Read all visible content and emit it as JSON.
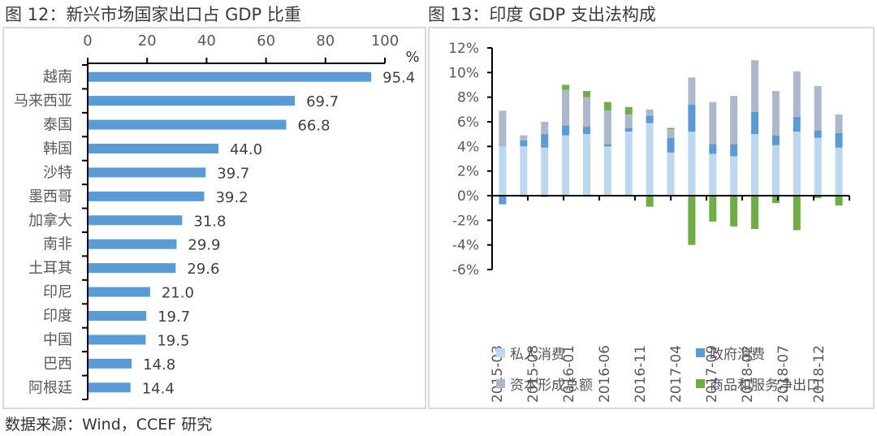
{
  "figures": {
    "left_title": "图 12：新兴市场国家出口占 GDP 比重",
    "right_title": "图 13：印度 GDP 支出法构成"
  },
  "source": "数据来源：Wind，CCEF 研究",
  "chart_data": [
    {
      "type": "bar",
      "orientation": "horizontal",
      "title": "图 12：新兴市场国家出口占 GDP 比重",
      "xlabel": "%",
      "ylabel": "",
      "xlim": [
        0,
        100
      ],
      "x_ticks": [
        "0",
        "20",
        "40",
        "60",
        "80",
        "100"
      ],
      "x_axis_position": "top",
      "grid": false,
      "color": "#5b9bd5",
      "categories": [
        "越南",
        "马来西亚",
        "泰国",
        "韩国",
        "沙特",
        "墨西哥",
        "加拿大",
        "南非",
        "土耳其",
        "印尼",
        "印度",
        "中国",
        "巴西",
        "阿根廷"
      ],
      "values": [
        95.4,
        69.7,
        66.8,
        44.0,
        39.7,
        39.2,
        31.8,
        29.9,
        29.6,
        21.0,
        19.7,
        19.5,
        14.8,
        14.4
      ],
      "data_labels": [
        "95.4",
        "69.7",
        "66.8",
        "44.0",
        "39.7",
        "39.2",
        "31.8",
        "29.9",
        "29.6",
        "21.0",
        "19.7",
        "19.5",
        "14.8",
        "14.4"
      ]
    },
    {
      "type": "bar",
      "stacked": true,
      "title": "图 13：印度 GDP 支出法构成",
      "xlabel": "",
      "ylabel": "",
      "ylim": [
        -6,
        12
      ],
      "y_ticks": [
        "12%",
        "10%",
        "8%",
        "6%",
        "4%",
        "2%",
        "0%",
        "-2%",
        "-4%",
        "-6%"
      ],
      "grid": false,
      "legend_position": "bottom",
      "x_tick_labels": [
        "2015-03",
        "2015-08",
        "2016-01",
        "2016-06",
        "2016-11",
        "2017-04",
        "2017-09",
        "2018-02",
        "2018-07",
        "2018-12"
      ],
      "bar_count": 17,
      "series": [
        {
          "name": "私人消费",
          "color": "#bdd7ee",
          "values": [
            4.0,
            4.0,
            3.9,
            4.9,
            5.0,
            4.0,
            5.2,
            5.9,
            3.5,
            5.2,
            3.4,
            3.2,
            5.0,
            4.1,
            5.2,
            4.7,
            3.9
          ]
        },
        {
          "name": "政府消费",
          "color": "#5b9bd5",
          "values": [
            -0.7,
            0.5,
            1.1,
            0.8,
            0.6,
            0.2,
            0.3,
            0.6,
            1.2,
            2.2,
            0.8,
            1.0,
            1.8,
            0.8,
            1.2,
            0.6,
            1.2
          ]
        },
        {
          "name": "资本形成总额",
          "color": "#adb9ca",
          "values": [
            2.9,
            0.4,
            1.0,
            2.9,
            2.4,
            2.7,
            1.1,
            0.5,
            0.7,
            2.2,
            3.4,
            3.9,
            4.2,
            3.6,
            3.7,
            3.6,
            1.5
          ]
        },
        {
          "name": "商品和服务净出口",
          "color": "#70ad47",
          "values": [
            0.0,
            -0.1,
            -0.1,
            0.4,
            0.5,
            0.7,
            0.6,
            -0.9,
            0.1,
            -4.0,
            -2.1,
            -2.5,
            -2.7,
            -0.6,
            -2.8,
            -0.2,
            -0.8
          ]
        }
      ]
    }
  ]
}
